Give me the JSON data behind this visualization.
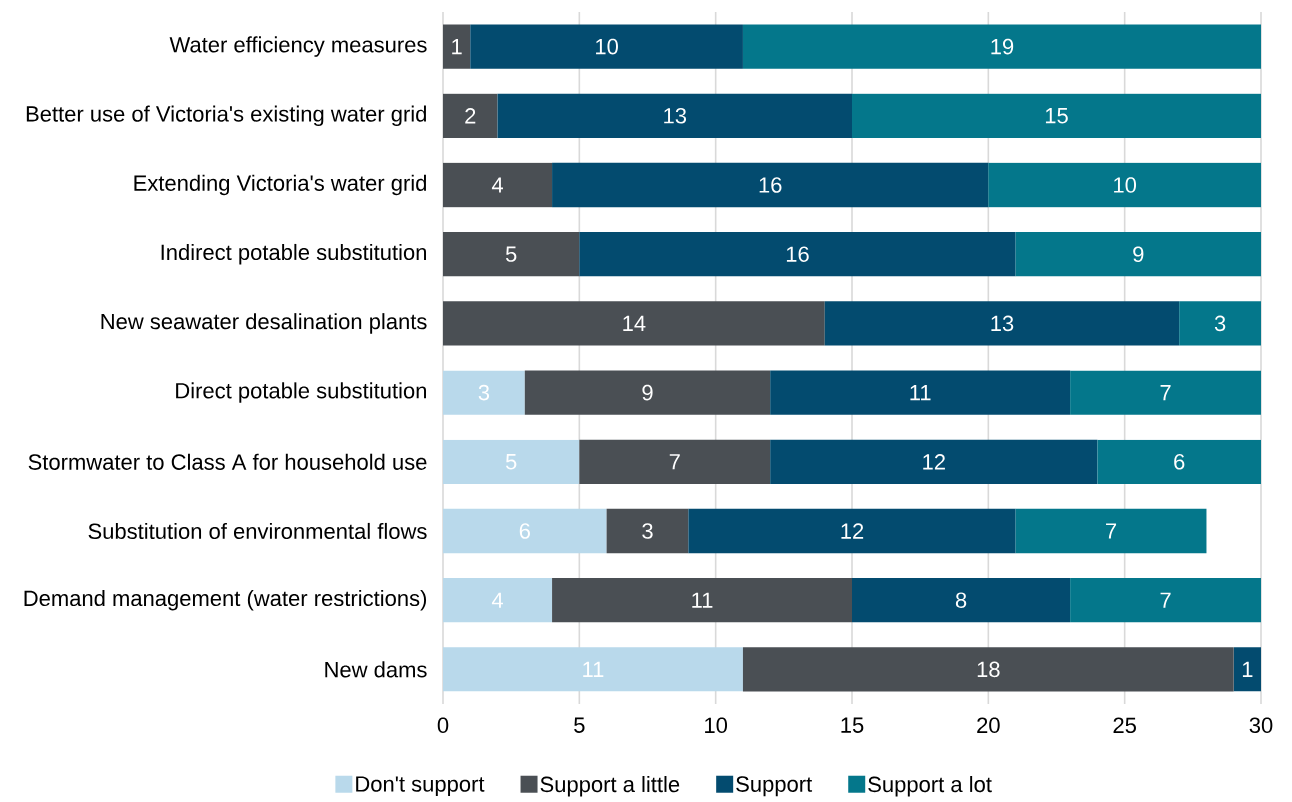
{
  "chart_data": {
    "type": "bar",
    "orientation": "horizontal",
    "stacked": true,
    "categories": [
      "Water efficiency measures",
      "Better use of Victoria's existing water grid",
      "Extending Victoria's water grid",
      "Indirect potable substitution",
      "New seawater desalination plants",
      "Direct potable substitution",
      "Stormwater to Class A for household use",
      "Substitution of environmental flows",
      "Demand management (water restrictions)",
      "New dams"
    ],
    "series": [
      {
        "name": "Don't support",
        "color": "#b9d9eb",
        "values": [
          null,
          null,
          null,
          null,
          null,
          3,
          5,
          6,
          4,
          11
        ]
      },
      {
        "name": "Support a little",
        "color": "#4a4f54",
        "values": [
          1,
          2,
          4,
          5,
          14,
          9,
          7,
          3,
          11,
          18
        ]
      },
      {
        "name": "Support",
        "color": "#034b6f",
        "values": [
          10,
          13,
          16,
          16,
          13,
          11,
          12,
          12,
          8,
          1
        ]
      },
      {
        "name": "Support a lot",
        "color": "#04778b",
        "values": [
          19,
          15,
          10,
          9,
          3,
          7,
          6,
          7,
          7,
          null
        ]
      }
    ],
    "xlim": [
      0,
      30
    ],
    "xticks": [
      0,
      5,
      10,
      15,
      20,
      25,
      30
    ],
    "grid": "x",
    "legend": "bottom",
    "data_labels": true
  }
}
